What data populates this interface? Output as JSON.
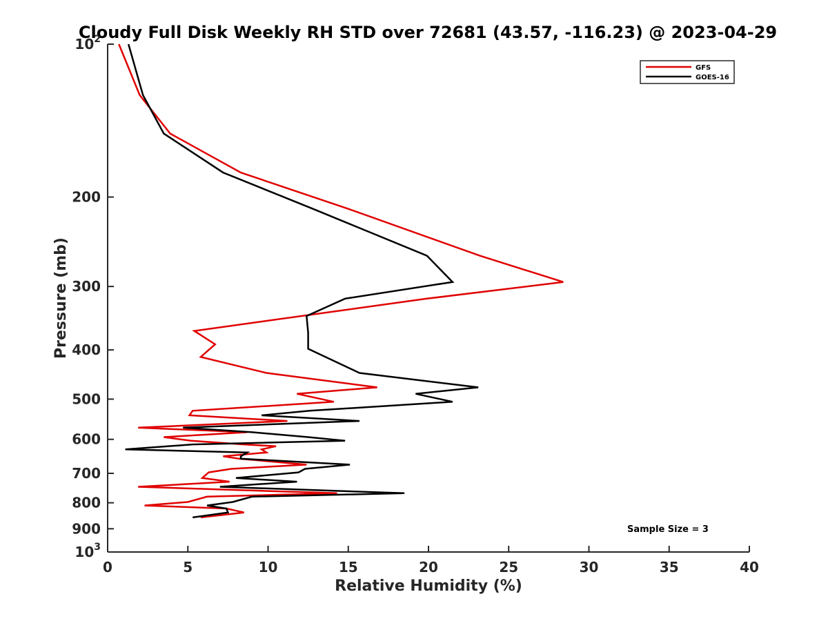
{
  "chart_data": {
    "type": "line",
    "title": "Cloudy Full Disk Weekly RH STD over 72681 (43.57, -116.23) @ 2023-04-29",
    "xlabel": "Relative Humidity (%)",
    "ylabel": "Pressure (mb)",
    "xlim": [
      0,
      40
    ],
    "ylim": [
      100,
      1000
    ],
    "yscale": "log",
    "y_inverted": true,
    "x_ticks": [
      "0",
      "5",
      "10",
      "15",
      "20",
      "25",
      "30",
      "35",
      "40"
    ],
    "y_ticks": [
      {
        "value": 100,
        "base": "10",
        "exp": "2"
      },
      {
        "value": 200,
        "label": "200"
      },
      {
        "value": 300,
        "label": "300"
      },
      {
        "value": 400,
        "label": "400"
      },
      {
        "value": 500,
        "label": "500"
      },
      {
        "value": 600,
        "label": "600"
      },
      {
        "value": 700,
        "label": "700"
      },
      {
        "value": 800,
        "label": "800"
      },
      {
        "value": 900,
        "label": "900"
      },
      {
        "value": 1000,
        "base": "10",
        "exp": "3"
      }
    ],
    "grid": false,
    "legend_position": "top-right",
    "annotation": "Sample Size = 3",
    "series": [
      {
        "name": "GFS",
        "color": "#e00000",
        "points": [
          [
            0.7,
            100
          ],
          [
            2.0,
            126
          ],
          [
            3.9,
            150
          ],
          [
            8.3,
            179
          ],
          [
            15.0,
            211
          ],
          [
            23.2,
            261
          ],
          [
            28.4,
            294
          ],
          [
            19.9,
            317
          ],
          [
            5.4,
            367
          ],
          [
            6.7,
            390
          ],
          [
            5.8,
            413
          ],
          [
            9.9,
            444
          ],
          [
            16.8,
            474
          ],
          [
            11.8,
            488
          ],
          [
            14.1,
            506
          ],
          [
            5.3,
            527
          ],
          [
            5.1,
            538
          ],
          [
            11.2,
            552
          ],
          [
            1.9,
            569
          ],
          [
            8.7,
            581
          ],
          [
            3.5,
            594
          ],
          [
            5.2,
            604
          ],
          [
            8.5,
            614
          ],
          [
            10.5,
            619
          ],
          [
            9.6,
            628
          ],
          [
            9.9,
            637
          ],
          [
            7.2,
            648
          ],
          [
            8.2,
            655
          ],
          [
            12.4,
            673
          ],
          [
            7.7,
            686
          ],
          [
            6.3,
            697
          ],
          [
            5.9,
            715
          ],
          [
            7.6,
            727
          ],
          [
            1.9,
            744
          ],
          [
            14.3,
            766
          ],
          [
            6.2,
            778
          ],
          [
            5.0,
            797
          ],
          [
            2.3,
            810
          ],
          [
            7.4,
            821
          ],
          [
            8.5,
            836
          ],
          [
            5.8,
            855
          ]
        ]
      },
      {
        "name": "GOES-16",
        "color": "#000000",
        "points": [
          [
            1.3,
            100
          ],
          [
            2.2,
            126
          ],
          [
            3.5,
            150
          ],
          [
            7.2,
            179
          ],
          [
            12.8,
            211
          ],
          [
            19.9,
            261
          ],
          [
            21.5,
            294
          ],
          [
            14.8,
            317
          ],
          [
            12.4,
            343
          ],
          [
            12.5,
            370
          ],
          [
            12.5,
            398
          ],
          [
            15.7,
            444
          ],
          [
            23.1,
            474
          ],
          [
            19.2,
            488
          ],
          [
            21.5,
            506
          ],
          [
            12.6,
            527
          ],
          [
            9.6,
            538
          ],
          [
            15.7,
            552
          ],
          [
            4.7,
            569
          ],
          [
            9.0,
            581
          ],
          [
            12.5,
            594
          ],
          [
            14.8,
            604
          ],
          [
            5.3,
            614
          ],
          [
            1.1,
            628
          ],
          [
            8.7,
            637
          ],
          [
            8.3,
            648
          ],
          [
            8.3,
            655
          ],
          [
            15.1,
            673
          ],
          [
            12.3,
            686
          ],
          [
            11.9,
            697
          ],
          [
            8.0,
            715
          ],
          [
            11.8,
            727
          ],
          [
            7.0,
            744
          ],
          [
            18.5,
            766
          ],
          [
            9.0,
            778
          ],
          [
            7.8,
            797
          ],
          [
            6.2,
            810
          ],
          [
            7.4,
            821
          ],
          [
            7.5,
            836
          ],
          [
            5.3,
            855
          ]
        ]
      }
    ]
  }
}
